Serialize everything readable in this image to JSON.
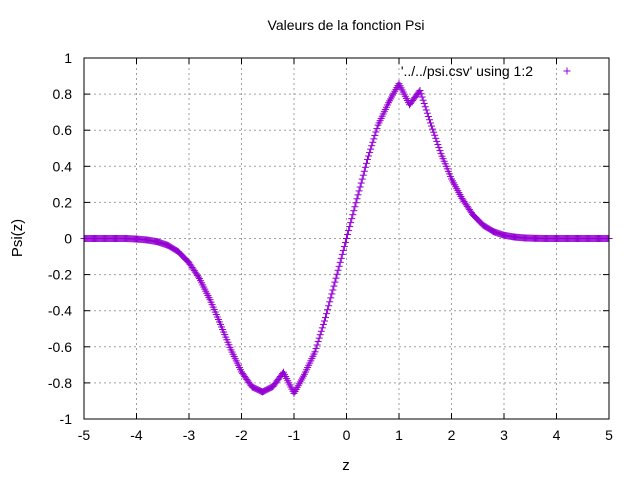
{
  "chart_data": {
    "type": "scatter",
    "title": "Valeurs de la fonction Psi",
    "xlabel": "z",
    "ylabel": "Psi(z)",
    "xlim": [
      -5,
      5
    ],
    "ylim": [
      -1,
      1
    ],
    "grid": true,
    "legend_position": "top-right",
    "x_ticks": [
      -5,
      -4,
      -3,
      -2,
      -1,
      0,
      1,
      2,
      3,
      4,
      5
    ],
    "x_tick_labels": [
      "-5",
      "-4",
      "-3",
      "-2",
      "-1",
      "0",
      "1",
      "2",
      "3",
      "4",
      "5"
    ],
    "y_ticks": [
      -1,
      -0.8,
      -0.6,
      -0.4,
      -0.2,
      0,
      0.2,
      0.4,
      0.6,
      0.8,
      1
    ],
    "y_tick_labels": [
      "-1",
      "-0.8",
      "-0.6",
      "-0.4",
      "-0.2",
      "0",
      "0.2",
      "0.4",
      "0.6",
      "0.8",
      "1"
    ],
    "series": [
      {
        "name": "'../../psi.csv' using 1:2",
        "color": "#9400d3",
        "marker": "plus",
        "x": [
          -5.0,
          -4.8,
          -4.6,
          -4.4,
          -4.2,
          -4.0,
          -3.8,
          -3.6,
          -3.4,
          -3.2,
          -3.0,
          -2.8,
          -2.6,
          -2.4,
          -2.2,
          -2.0,
          -1.8,
          -1.6,
          -1.4,
          -1.2,
          -1.0,
          -0.8,
          -0.6,
          -0.4,
          -0.2,
          0.0,
          0.2,
          0.4,
          0.6,
          0.8,
          1.0,
          1.2,
          1.4,
          1.6,
          1.8,
          2.0,
          2.2,
          2.4,
          2.6,
          2.8,
          3.0,
          3.2,
          3.4,
          3.6,
          3.8,
          4.0,
          4.2,
          4.4,
          4.6,
          4.8,
          5.0
        ],
        "y": [
          0.0,
          0.0,
          0.0,
          0.0,
          0.0,
          -0.003,
          -0.008,
          -0.018,
          -0.038,
          -0.074,
          -0.134,
          -0.222,
          -0.339,
          -0.476,
          -0.617,
          -0.739,
          -0.822,
          -0.85,
          -0.82,
          -0.741,
          -0.858,
          -0.752,
          -0.628,
          -0.438,
          -0.22,
          0.0,
          0.22,
          0.438,
          0.628,
          0.752,
          0.858,
          0.741,
          0.82,
          0.64,
          0.47,
          0.33,
          0.222,
          0.134,
          0.074,
          0.038,
          0.018,
          0.008,
          0.003,
          0.001,
          0.0,
          0.0,
          0.0,
          0.0,
          0.0,
          0.0,
          0.0
        ]
      }
    ]
  }
}
